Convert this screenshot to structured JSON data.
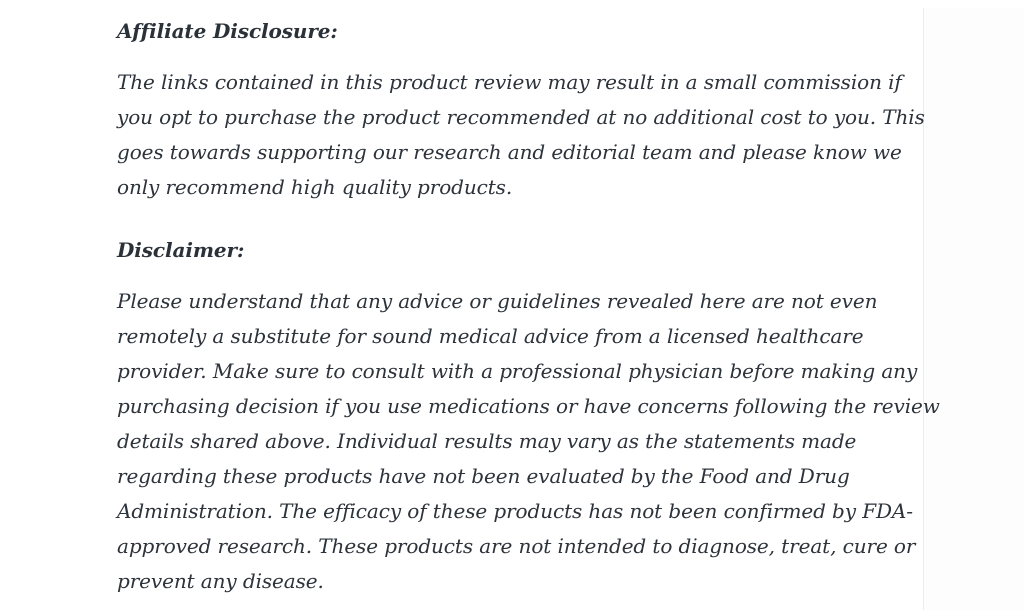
{
  "page": {
    "background_color": "#ffffff",
    "text_color": "#2d333b",
    "divider_color": "#ececec"
  },
  "article": {
    "affiliate_heading": "Affiliate Disclosure:",
    "affiliate_paragraph": [
      "The links contained in this product review may result in a small commission if",
      "you opt to purchase the product recommended at no additional cost to you. This",
      "goes towards supporting our research and editorial team and please know we",
      "only recommend high quality products."
    ],
    "disclaimer_heading": "Disclaimer:",
    "disclaimer_paragraph": [
      "Please understand that any advice or guidelines revealed here are not even",
      "remotely a substitute for sound medical advice from a licensed healthcare",
      "provider. Make sure to consult with a professional physician before making any",
      "purchasing decision if you use medications or have concerns following the review",
      "details shared above. Individual results may vary as the statements made",
      "regarding these products have not been evaluated by the Food and Drug",
      "Administration. The efficacy of these products has not been confirmed by FDA-",
      "approved research. These products are not intended to diagnose, treat, cure or",
      "prevent any disease."
    ]
  }
}
